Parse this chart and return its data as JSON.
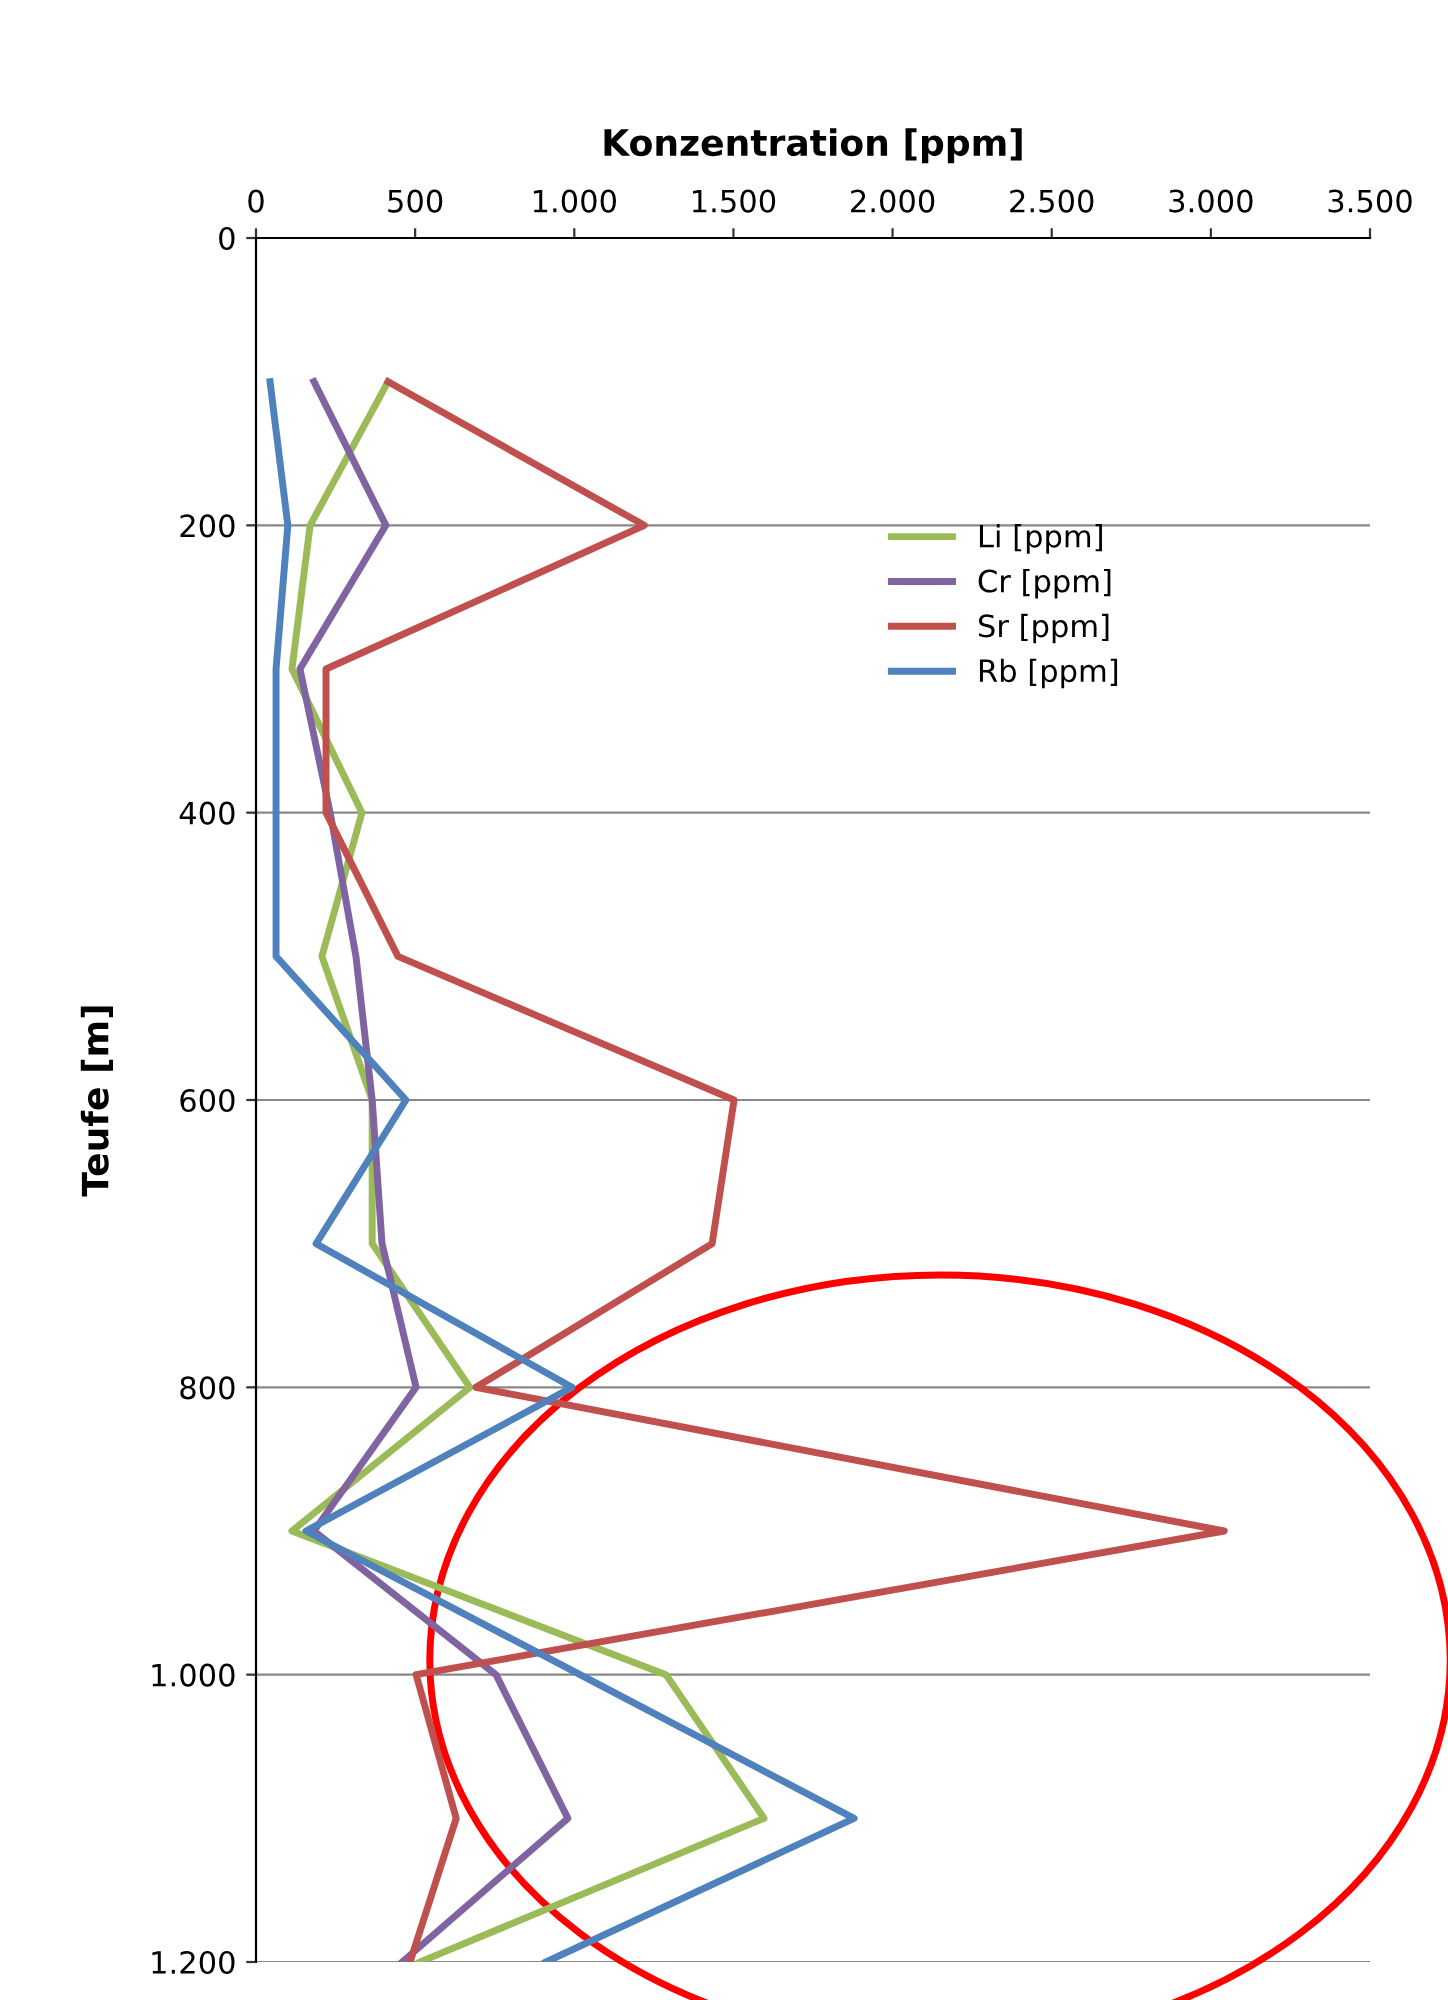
{
  "chart_data": {
    "type": "line",
    "xlabel": "Konzentration [ppm]",
    "ylabel": "Teufe [m]",
    "xlim": [
      0,
      3500
    ],
    "xticks": [
      0,
      500,
      {
        "value": 1000,
        "label": "1.000"
      },
      {
        "value": 1500,
        "label": "1.500"
      },
      {
        "value": 2000,
        "label": "2.000"
      },
      {
        "value": 2500,
        "label": "2.500"
      },
      {
        "value": 3000,
        "label": "3.000"
      },
      {
        "value": 3500,
        "label": "3.500"
      }
    ],
    "ylim": [
      1200,
      0
    ],
    "yticks": [
      0,
      200,
      400,
      600,
      800,
      {
        "value": 1000,
        "label": "1.000"
      },
      {
        "value": 1200,
        "label": "1.200"
      }
    ],
    "grid": "y",
    "legend": "upper right",
    "marker": "none",
    "line_style": "solid",
    "series": [
      {
        "name": "Li [ppm]",
        "color": "#9bbb59",
        "x": [
          415,
          170,
          113,
          333,
          207,
          365,
          365,
          672,
          113,
          1288,
          1596,
          515
        ],
        "values": [
          100,
          200,
          300,
          400,
          500,
          600,
          700,
          800,
          900,
          1000,
          1100,
          1200
        ]
      },
      {
        "name": "Cr [ppm]",
        "color": "#8064a2",
        "x": [
          182,
          408,
          138,
          233,
          314,
          365,
          396,
          503,
          182,
          754,
          980,
          459
        ],
        "values": [
          100,
          200,
          300,
          400,
          500,
          600,
          700,
          800,
          900,
          1000,
          1100,
          1200
        ]
      },
      {
        "name": "Sr [ppm]",
        "color": "#c0504d",
        "x": [
          415,
          1220,
          220,
          220,
          446,
          1502,
          1433,
          691,
          3042,
          503,
          629,
          484
        ],
        "values": [
          100,
          200,
          300,
          400,
          500,
          600,
          700,
          800,
          900,
          1000,
          1100,
          1200
        ]
      },
      {
        "name": "Rb [ppm]",
        "color": "#4f81bd",
        "x": [
          44,
          100,
          63,
          63,
          63,
          471,
          189,
          993,
          157,
          1018,
          1879,
          911
        ],
        "values": [
          100,
          200,
          300,
          400,
          500,
          600,
          700,
          800,
          900,
          1000,
          1100,
          1200
        ]
      }
    ]
  }
}
